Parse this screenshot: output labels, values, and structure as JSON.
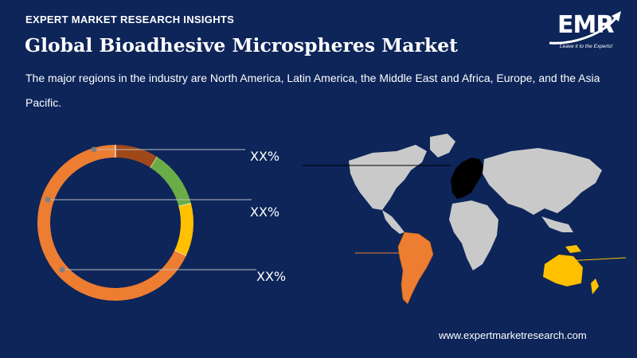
{
  "header": {
    "kicker": "EXPERT MARKET RESEARCH INSIGHTS",
    "title": "Global Bioadhesive Microspheres Market",
    "description": "The major regions in the industry are North America, Latin America, the Middle East and Africa, Europe, and the Asia Pacific."
  },
  "logo": {
    "text": "EMR",
    "tagline": "Leave it to the Experts!"
  },
  "chart_data": {
    "type": "pie",
    "variant": "donut",
    "labels": [
      "XX%",
      "XX%",
      "XX%"
    ],
    "segments": [
      {
        "color": "#a0481a",
        "value": 0.09
      },
      {
        "color": "#6aac46",
        "value": 0.12
      },
      {
        "color": "#ffc000",
        "value": 0.11
      },
      {
        "color": "#ed7d31",
        "value": 0.68
      }
    ]
  },
  "map": {
    "highlight_colors": {
      "europe": "#000000",
      "latin_america": "#ed7d31",
      "asia_pacific": "#ffc000",
      "other": "#c9c9c9"
    }
  },
  "footer": {
    "url": "www.expertmarketresearch.com"
  }
}
